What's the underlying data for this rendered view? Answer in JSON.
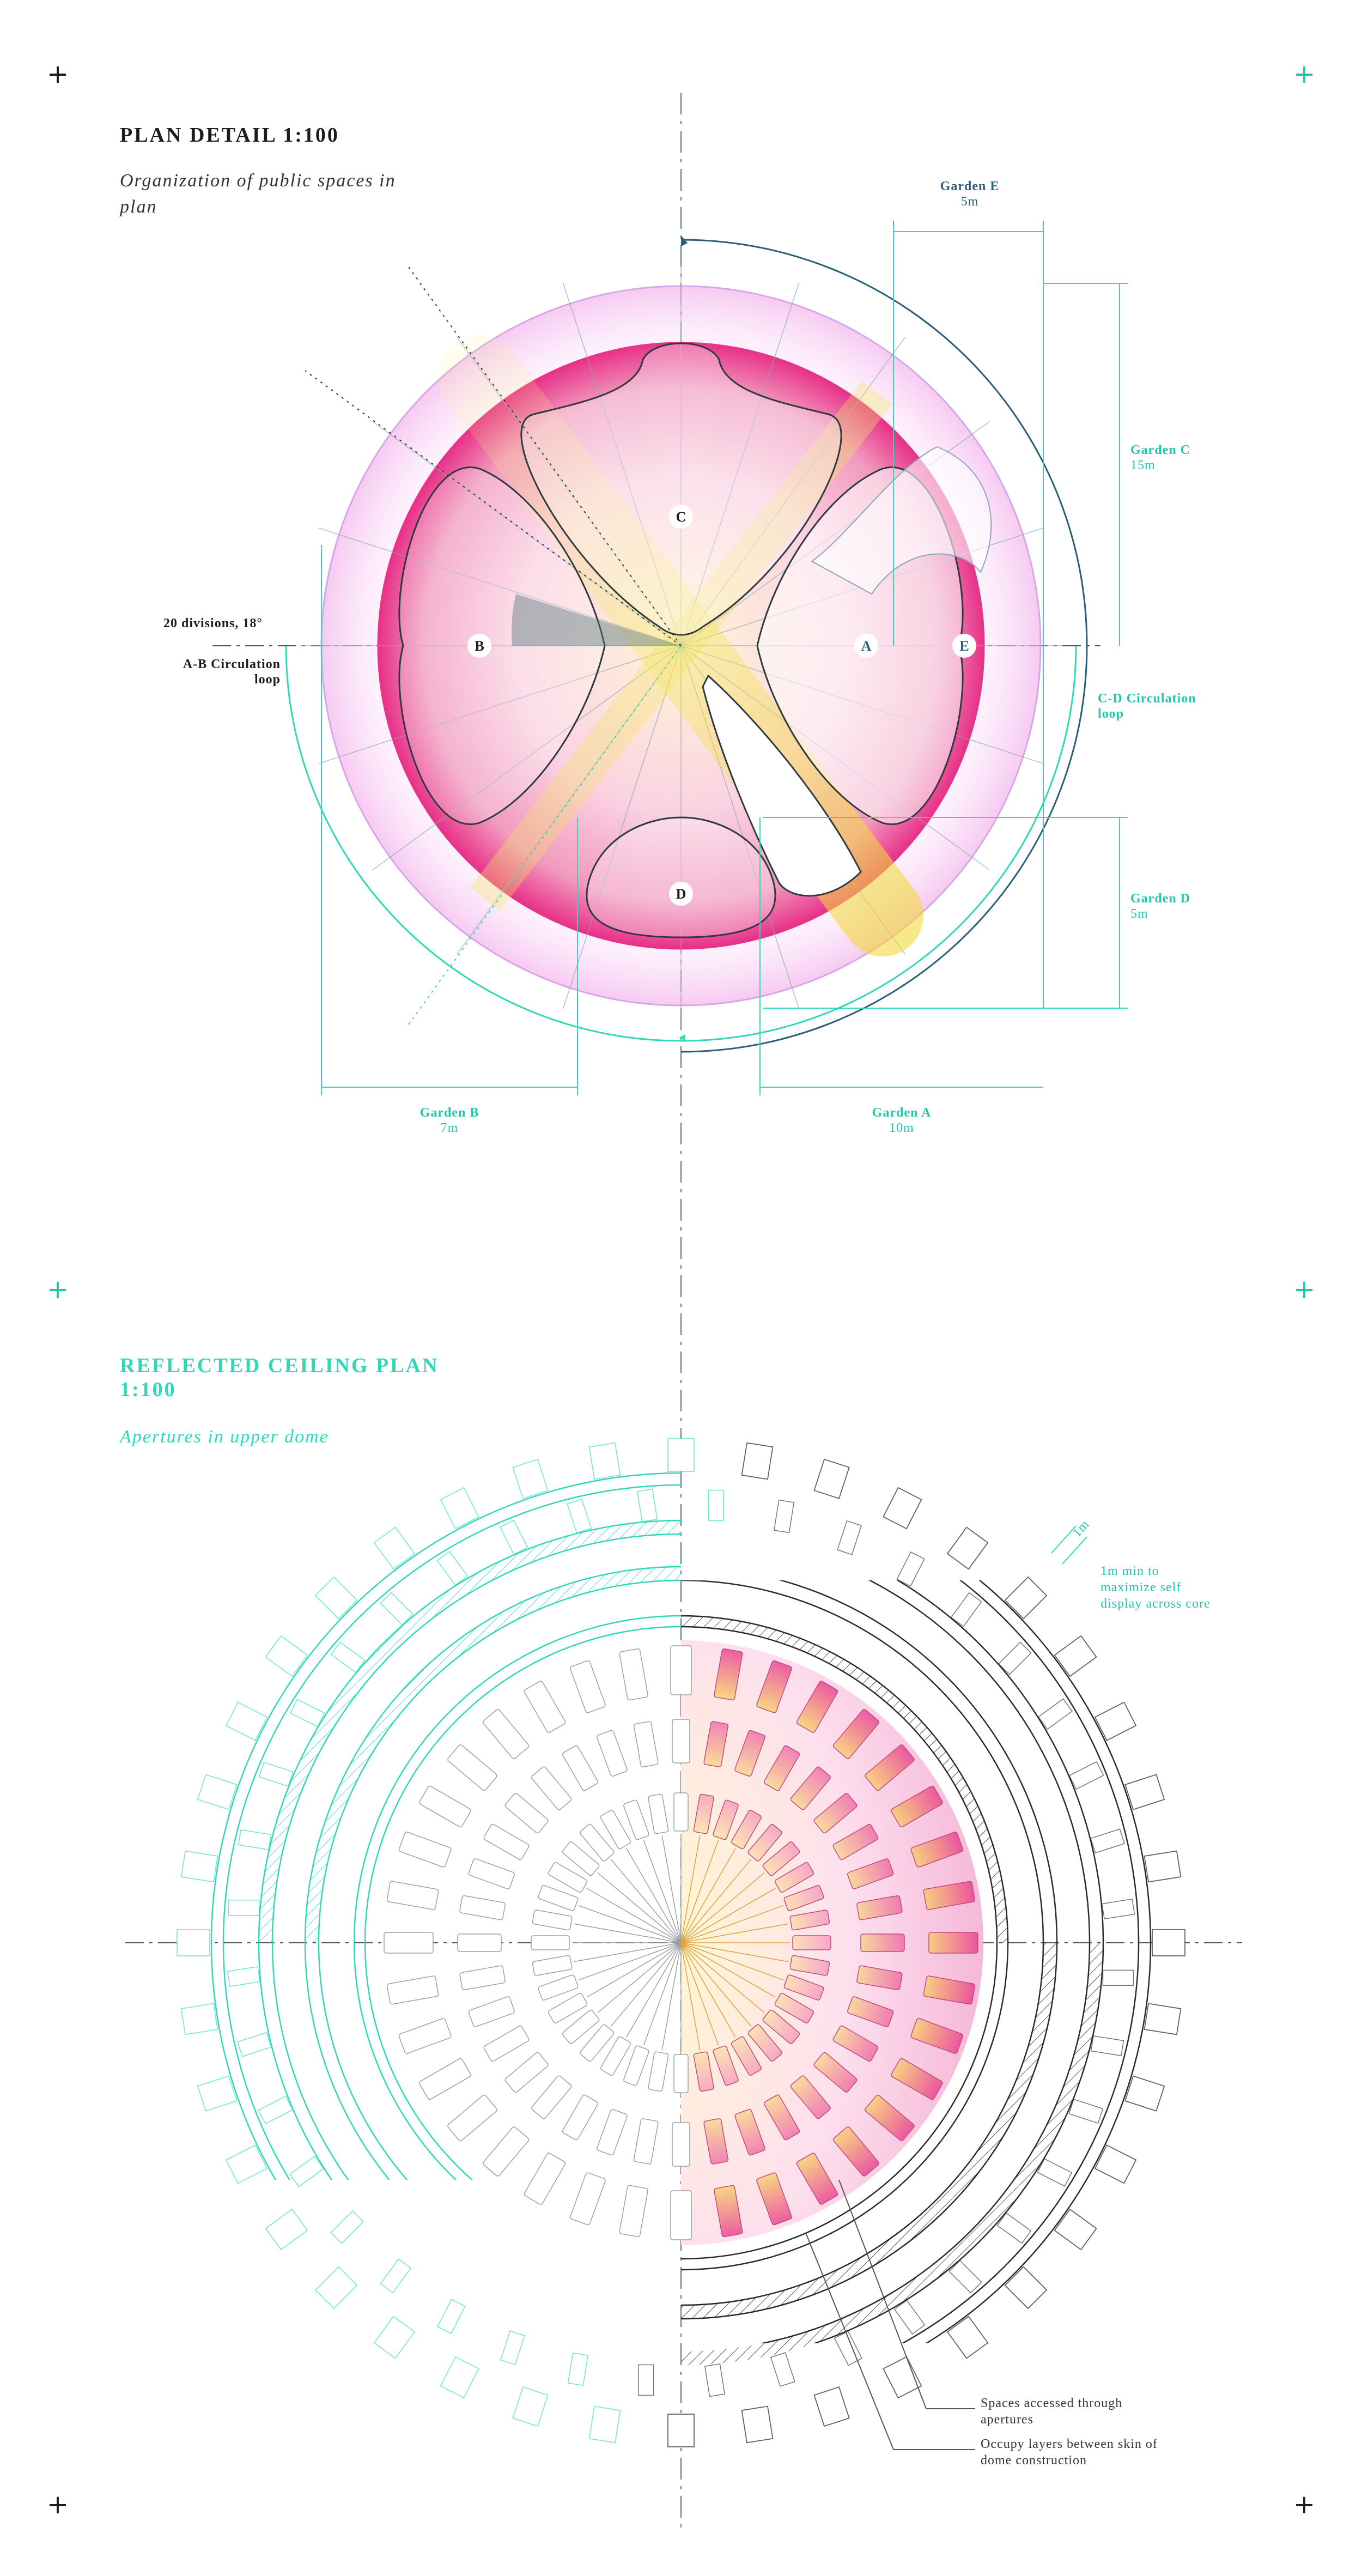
{
  "plan_detail": {
    "title": "PLAN DETAIL 1:100",
    "subtitle": "Organization of public spaces in plan",
    "zones": [
      "C",
      "B",
      "A",
      "E",
      "D"
    ],
    "divisions_label": "20 divisions, 18°",
    "ab_loop": "A-B Circulation loop",
    "cd_loop": "C-D Circulation loop",
    "gardens": [
      {
        "name": "Garden E",
        "size": "5m"
      },
      {
        "name": "Garden C",
        "size": "15m"
      },
      {
        "name": "Garden D",
        "size": "5m"
      },
      {
        "name": "Garden B",
        "size": "7m"
      },
      {
        "name": "Garden A",
        "size": "10m"
      }
    ]
  },
  "ceiling_plan": {
    "title_line1": "REFLECTED CEILING PLAN",
    "title_line2": "1:100",
    "subtitle": "Apertures in upper dome",
    "dim_label": "1m",
    "note_min": "1m min to maximize self display across core",
    "note_spaces": "Spaces accessed through apertures",
    "note_layers": "Occupy layers between skin of dome construction"
  },
  "colors": {
    "teal": "#2ed8b8",
    "navy": "#2a5f7a",
    "magenta": "#e8338a",
    "yellow": "#f2e24a",
    "ink": "#1c1c1c"
  }
}
